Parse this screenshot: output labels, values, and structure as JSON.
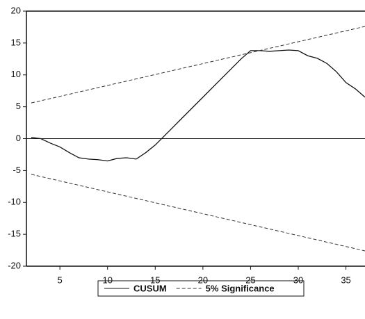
{
  "chart_data": {
    "type": "line",
    "x": [
      2,
      3,
      4,
      5,
      6,
      7,
      8,
      9,
      10,
      11,
      12,
      13,
      14,
      15,
      16,
      17,
      18,
      19,
      20,
      21,
      22,
      23,
      24,
      25,
      26,
      27,
      28,
      29,
      30,
      31,
      32,
      33,
      34,
      35,
      36,
      37
    ],
    "series": [
      {
        "name": "CUSUM",
        "color": "#111111",
        "dash": false,
        "values": [
          0.2,
          0,
          -0.7,
          -1.3,
          -2.2,
          -3,
          -3.2,
          -3.3,
          -3.5,
          -3.1,
          -3.0,
          -3.2,
          -2.2,
          -1,
          0.5,
          2,
          3.5,
          5,
          6.5,
          8,
          9.5,
          11,
          12.5,
          13.8,
          13.8,
          13.7,
          13.8,
          13.9,
          13.8,
          13,
          12.6,
          11.8,
          10.5,
          8.8,
          7.8,
          6.5
        ]
      },
      {
        "name": "5% Significance",
        "color": "#333333",
        "dash": true,
        "x": [
          2,
          37
        ],
        "values": [
          5.6,
          17.6
        ],
        "lower": [
          -5.6,
          -17.6
        ]
      }
    ],
    "xlim": [
      2,
      37
    ],
    "xticks": [
      5,
      10,
      15,
      20,
      25,
      30,
      35
    ],
    "ylim": [
      -20,
      20
    ],
    "yticks": [
      -20,
      -15,
      -10,
      -5,
      0,
      5,
      10,
      15,
      20
    ]
  }
}
